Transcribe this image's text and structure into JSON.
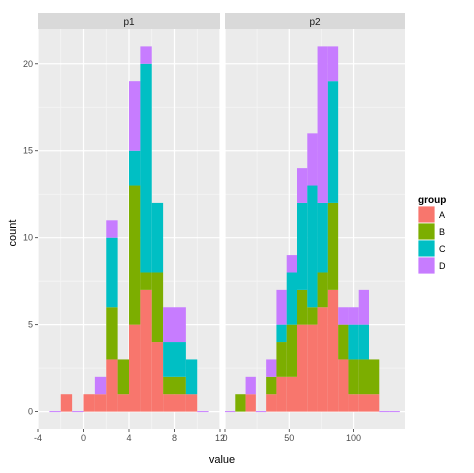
{
  "chart_data": {
    "type": "bar",
    "stacked": true,
    "xlabel": "value",
    "ylabel": "count",
    "ylim": [
      -1,
      22
    ],
    "y_ticks": [
      0,
      5,
      10,
      15,
      20
    ],
    "legend": {
      "title": "group",
      "position": "right",
      "entries": [
        "A",
        "B",
        "C",
        "D"
      ]
    },
    "colors": {
      "A": "#F8766D",
      "B": "#7CAE00",
      "C": "#00BFC4",
      "D": "#C77CFF",
      "panel_bg": "#EBEBEB",
      "grid": "#FFFFFF",
      "strip_bg": "#D9D9D9"
    },
    "panels": [
      {
        "strip": "p1",
        "xlim": [
          -4,
          12
        ],
        "x_ticks": [
          -4,
          0,
          4,
          8,
          12
        ],
        "bin_starts": [
          -3,
          -2,
          -1,
          0,
          1,
          2,
          3,
          4,
          5,
          6,
          7,
          8,
          9,
          10
        ],
        "bin_width": 1,
        "series": [
          {
            "name": "A",
            "values": [
              0,
              1,
              0,
              1,
              1,
              3,
              1,
              5,
              7,
              4,
              1,
              1,
              1,
              0
            ]
          },
          {
            "name": "B",
            "values": [
              0,
              0,
              0,
              0,
              0,
              3,
              2,
              8,
              1,
              4,
              1,
              1,
              0,
              0
            ]
          },
          {
            "name": "C",
            "values": [
              0,
              0,
              0,
              0,
              0,
              4,
              0,
              2,
              12,
              4,
              2,
              2,
              2,
              0
            ]
          },
          {
            "name": "D",
            "values": [
              0,
              0,
              0,
              0,
              1,
              1,
              0,
              4,
              1,
              0,
              2,
              2,
              0,
              0
            ]
          }
        ]
      },
      {
        "strip": "p2",
        "xlim": [
          0,
          140
        ],
        "x_ticks": [
          0,
          50,
          100
        ],
        "bin_starts": [
          0,
          8,
          16,
          24,
          32,
          40,
          48,
          56,
          64,
          72,
          80,
          88,
          96,
          104,
          112,
          120,
          128
        ],
        "bin_width": 8,
        "series": [
          {
            "name": "A",
            "values": [
              0,
              0,
              1,
              0,
              1,
              2,
              2,
              5,
              5,
              6,
              7,
              3,
              1,
              1,
              1,
              0,
              0
            ]
          },
          {
            "name": "B",
            "values": [
              0,
              1,
              0,
              0,
              1,
              2,
              3,
              2,
              1,
              2,
              5,
              2,
              2,
              2,
              2,
              0,
              0
            ]
          },
          {
            "name": "C",
            "values": [
              0,
              0,
              0,
              0,
              0,
              1,
              3,
              5,
              7,
              4,
              7,
              0,
              2,
              2,
              0,
              0,
              0
            ]
          },
          {
            "name": "D",
            "values": [
              0,
              0,
              1,
              0,
              1,
              2,
              1,
              2,
              3,
              9,
              2,
              1,
              1,
              2,
              0,
              0,
              0
            ]
          }
        ]
      }
    ]
  }
}
